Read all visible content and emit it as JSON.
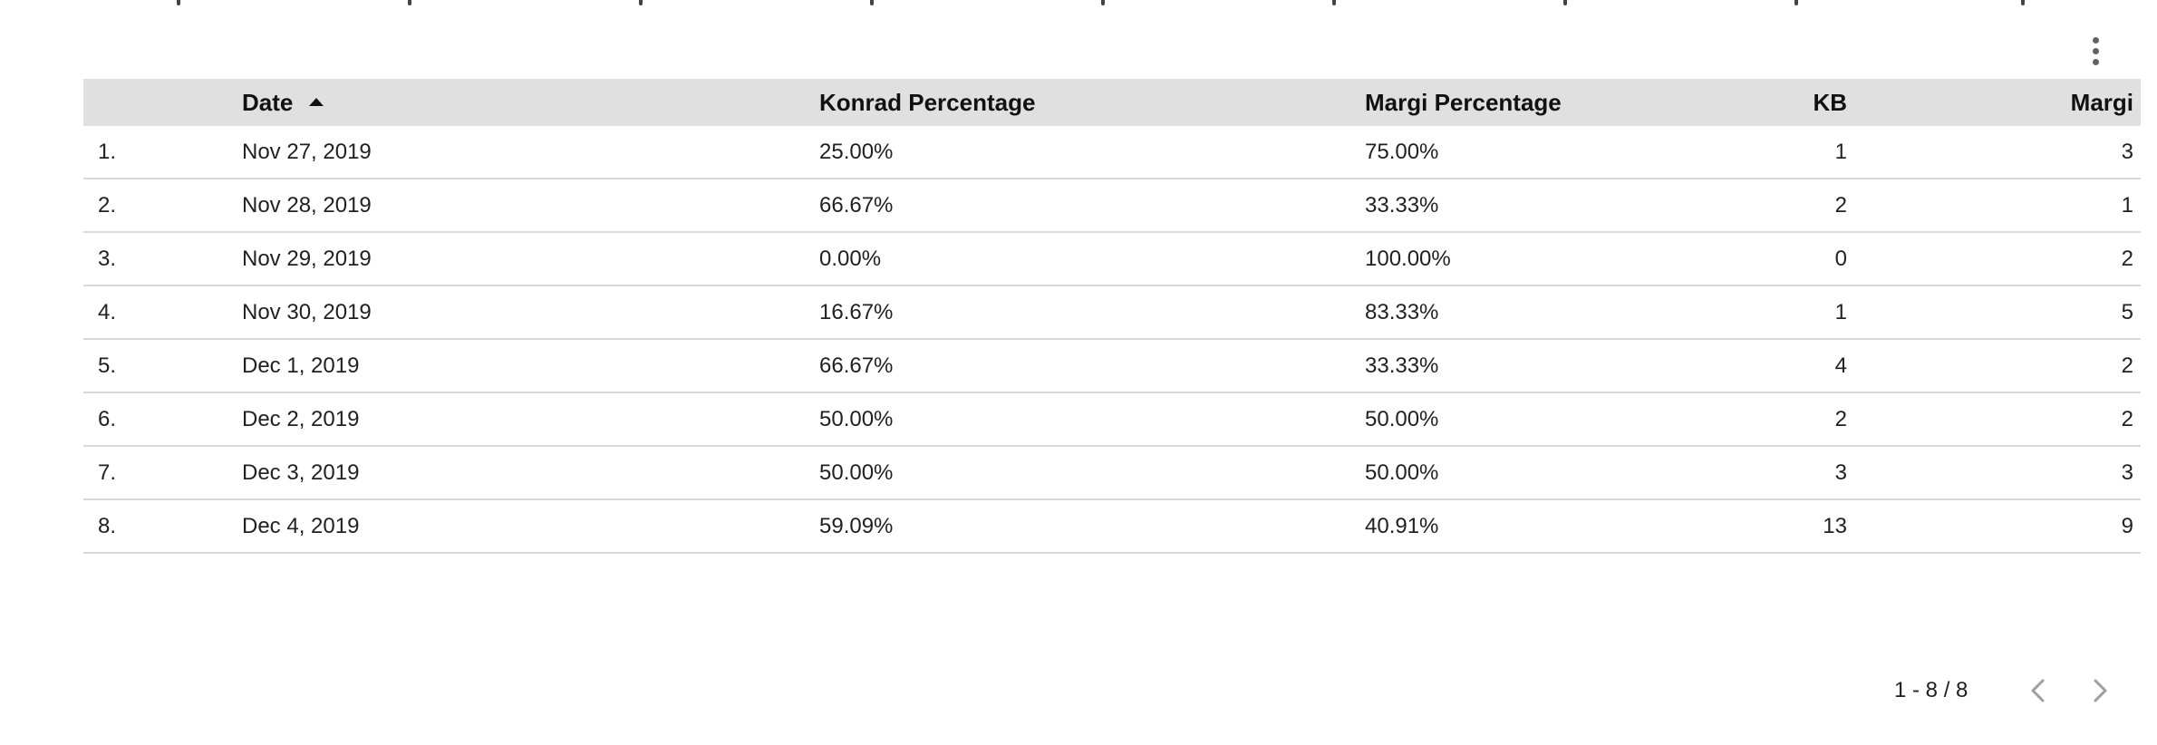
{
  "table": {
    "columns": {
      "index": "",
      "date": "Date",
      "konrad_pct": "Konrad Percentage",
      "margi_pct": "Margi Percentage",
      "kb": "KB",
      "margi": "Margi"
    },
    "sort": {
      "column": "date",
      "direction": "ascending"
    },
    "rows": [
      {
        "index": "1.",
        "date": "Nov 27, 2019",
        "konrad_pct": "25.00%",
        "margi_pct": "75.00%",
        "kb": "1",
        "margi": "3"
      },
      {
        "index": "2.",
        "date": "Nov 28, 2019",
        "konrad_pct": "66.67%",
        "margi_pct": "33.33%",
        "kb": "2",
        "margi": "1"
      },
      {
        "index": "3.",
        "date": "Nov 29, 2019",
        "konrad_pct": "0.00%",
        "margi_pct": "100.00%",
        "kb": "0",
        "margi": "2"
      },
      {
        "index": "4.",
        "date": "Nov 30, 2019",
        "konrad_pct": "16.67%",
        "margi_pct": "83.33%",
        "kb": "1",
        "margi": "5"
      },
      {
        "index": "5.",
        "date": "Dec 1, 2019",
        "konrad_pct": "66.67%",
        "margi_pct": "33.33%",
        "kb": "4",
        "margi": "2"
      },
      {
        "index": "6.",
        "date": "Dec 2, 2019",
        "konrad_pct": "50.00%",
        "margi_pct": "50.00%",
        "kb": "2",
        "margi": "2"
      },
      {
        "index": "7.",
        "date": "Dec 3, 2019",
        "konrad_pct": "50.00%",
        "margi_pct": "50.00%",
        "kb": "3",
        "margi": "3"
      },
      {
        "index": "8.",
        "date": "Dec 4, 2019",
        "konrad_pct": "59.09%",
        "margi_pct": "40.91%",
        "kb": "13",
        "margi": "9"
      }
    ]
  },
  "pagination": {
    "range_text": "1 - 8 / 8",
    "prev_icon": "chevron-left-icon",
    "next_icon": "chevron-right-icon"
  },
  "toolbar": {
    "menu_icon": "more-vert-icon"
  },
  "colors": {
    "header_bg": "#e0e0e0",
    "row_divider": "#d9d9d9",
    "text": "#212121",
    "icon": "#5f6368"
  }
}
